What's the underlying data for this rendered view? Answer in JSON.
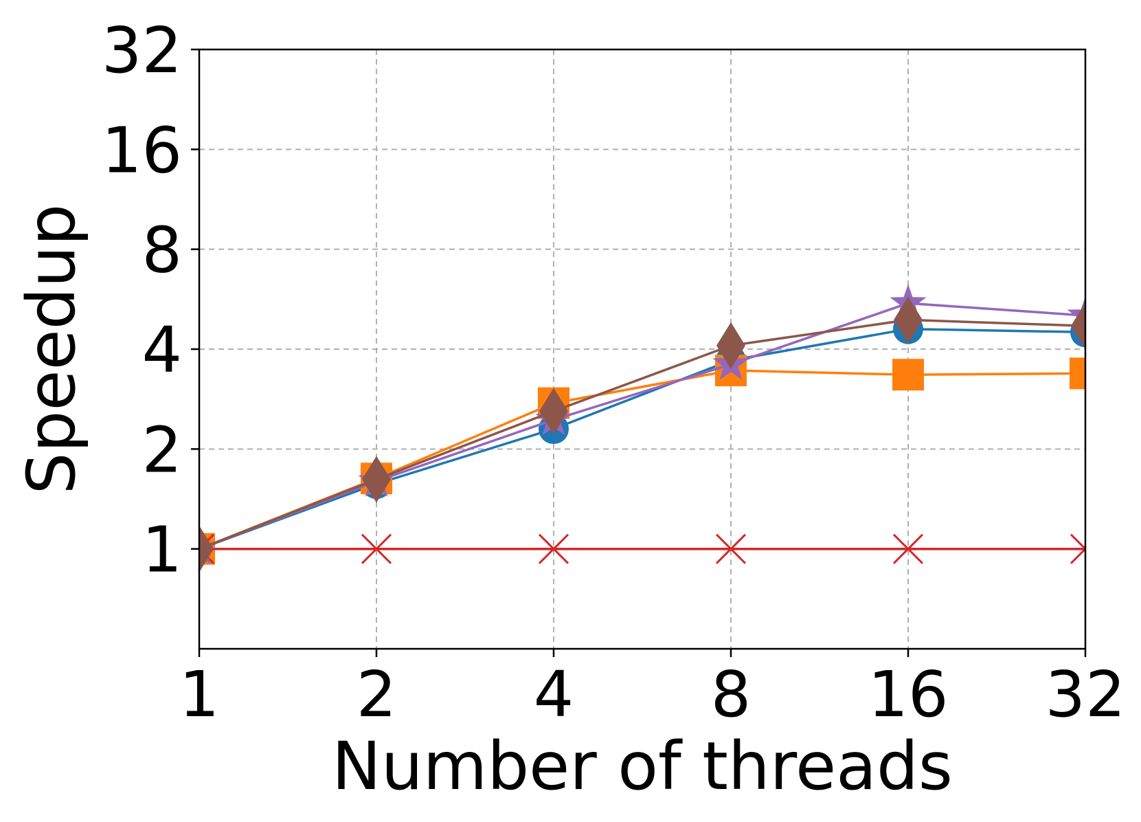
{
  "chart_data": {
    "type": "line",
    "xlabel": "Number of threads",
    "ylabel": "Speedup",
    "x": [
      1,
      2,
      4,
      8,
      16,
      32
    ],
    "x_tick_labels": [
      "1",
      "2",
      "4",
      "8",
      "16",
      "32"
    ],
    "y_tick_values": [
      1,
      2,
      4,
      8,
      16,
      32
    ],
    "y_tick_labels": [
      "1",
      "2",
      "4",
      "8",
      "16",
      "32"
    ],
    "x_scale": "log2",
    "y_scale": "log2",
    "xlim": [
      1,
      32
    ],
    "ylim": [
      0.5,
      32
    ],
    "grid": true,
    "legend": "none",
    "series": [
      {
        "color": "#1f77b4",
        "marker": "circle",
        "values": [
          1.0,
          1.57,
          2.3,
          3.7,
          4.6,
          4.5
        ]
      },
      {
        "color": "#ff7f0e",
        "marker": "square",
        "values": [
          1.0,
          1.63,
          2.75,
          3.45,
          3.35,
          3.38
        ]
      },
      {
        "color": "#d62728",
        "marker": "x",
        "values": [
          1.0,
          1.0,
          1.0,
          1.0,
          1.0,
          1.0
        ]
      },
      {
        "color": "#9467bd",
        "marker": "star",
        "values": [
          1.0,
          1.6,
          2.45,
          3.6,
          5.5,
          5.05
        ]
      },
      {
        "color": "#8c564b",
        "marker": "diamond",
        "values": [
          1.0,
          1.62,
          2.6,
          4.1,
          4.9,
          4.7
        ]
      }
    ]
  }
}
